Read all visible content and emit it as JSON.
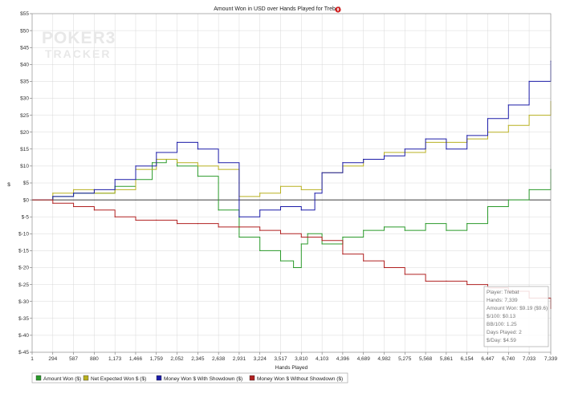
{
  "chart_data": {
    "type": "line",
    "title": "Amount Won in USD over Hands Played for Trebat",
    "xlabel": "Hands Played",
    "ylabel": "$",
    "xlim": [
      1,
      7339
    ],
    "ylim": [
      -45,
      55
    ],
    "grid": true,
    "legend_position": "bottom-left",
    "x_ticks": [
      "1",
      "294",
      "587",
      "880",
      "1,173",
      "1,466",
      "1,759",
      "2,052",
      "2,345",
      "2,638",
      "2,931",
      "3,224",
      "3,517",
      "3,810",
      "4,103",
      "4,396",
      "4,689",
      "4,982",
      "5,275",
      "5,568",
      "5,861",
      "6,154",
      "6,447",
      "6,740",
      "7,033",
      "7,339"
    ],
    "y_ticks": [
      "$55",
      "$50",
      "$45",
      "$40",
      "$35",
      "$30",
      "$25",
      "$20",
      "$15",
      "$10",
      "$5",
      "$0",
      "$-5",
      "$-10",
      "$-15",
      "$-20",
      "$-25",
      "$-30",
      "$-35",
      "$-40",
      "$-45"
    ],
    "series": [
      {
        "name": "Amount Won ($)",
        "color": "#2a9a2a",
        "x": [
          1,
          294,
          587,
          880,
          1173,
          1466,
          1700,
          1900,
          2052,
          2345,
          2638,
          2931,
          3224,
          3517,
          3700,
          3810,
          3900,
          4103,
          4396,
          4689,
          4982,
          5275,
          5568,
          5861,
          6154,
          6447,
          6740,
          7033,
          7339
        ],
        "y": [
          0,
          1,
          2,
          2,
          4,
          6,
          11,
          12,
          10,
          7,
          -3,
          -11,
          -15,
          -18,
          -20,
          -13,
          -10,
          -13,
          -11,
          -9,
          -8,
          -9,
          -7,
          -9,
          -7,
          -2,
          0,
          3,
          9
        ]
      },
      {
        "name": "Net Expected Won $ ($)",
        "color": "#b8b020",
        "x": [
          1,
          294,
          587,
          880,
          1173,
          1466,
          1759,
          2052,
          2345,
          2638,
          2931,
          3224,
          3517,
          3810,
          4103,
          4396,
          4689,
          4982,
          5275,
          5568,
          5861,
          6154,
          6447,
          6740,
          7033,
          7339
        ],
        "y": [
          0,
          2,
          3,
          2,
          3,
          9,
          12,
          11,
          10,
          9,
          1,
          2,
          4,
          3,
          8,
          10,
          12,
          14,
          14,
          17,
          17,
          18,
          20,
          22,
          25,
          29
        ]
      },
      {
        "name": "Money Won $ With Showdown ($)",
        "color": "#1c1ca8",
        "x": [
          1,
          294,
          587,
          880,
          1173,
          1466,
          1759,
          2052,
          2345,
          2638,
          2931,
          3224,
          3517,
          3810,
          4000,
          4103,
          4396,
          4689,
          4982,
          5275,
          5568,
          5861,
          6154,
          6447,
          6740,
          7033,
          7339
        ],
        "y": [
          0,
          1,
          2,
          3,
          6,
          10,
          14,
          17,
          15,
          11,
          -5,
          -3,
          -2,
          -3,
          2,
          8,
          11,
          12,
          13,
          15,
          18,
          15,
          19,
          24,
          28,
          35,
          41
        ]
      },
      {
        "name": "Money Won $ Without Showdown ($)",
        "color": "#b02020",
        "x": [
          1,
          294,
          587,
          880,
          1173,
          1466,
          1759,
          2052,
          2345,
          2638,
          2931,
          3224,
          3517,
          3810,
          4103,
          4396,
          4689,
          4982,
          5275,
          5568,
          5861,
          6154,
          6447,
          6740,
          7033,
          7339
        ],
        "y": [
          0,
          -1,
          -2,
          -3,
          -5,
          -6,
          -6,
          -7,
          -7,
          -8,
          -8,
          -9,
          -10,
          -11,
          -12,
          -16,
          -18,
          -20,
          -22,
          -24,
          -24,
          -25,
          -26,
          -27,
          -29,
          -32
        ]
      }
    ]
  },
  "stats": [
    "Player: Trebat",
    "Hands: 7,339",
    "Amount Won: $9.19 ($9.6)",
    "$/100: $0.13",
    "BB/100: 1.25",
    "Days Played: 2",
    "$/Day: $4.59"
  ],
  "watermark": {
    "line1": "POKER3",
    "line2": "TRACKER"
  },
  "colors": {
    "grid": "#d8d8d8",
    "plot_bg": "#ffffff",
    "zero_line": "#000000",
    "title_icon": "#d02020"
  }
}
